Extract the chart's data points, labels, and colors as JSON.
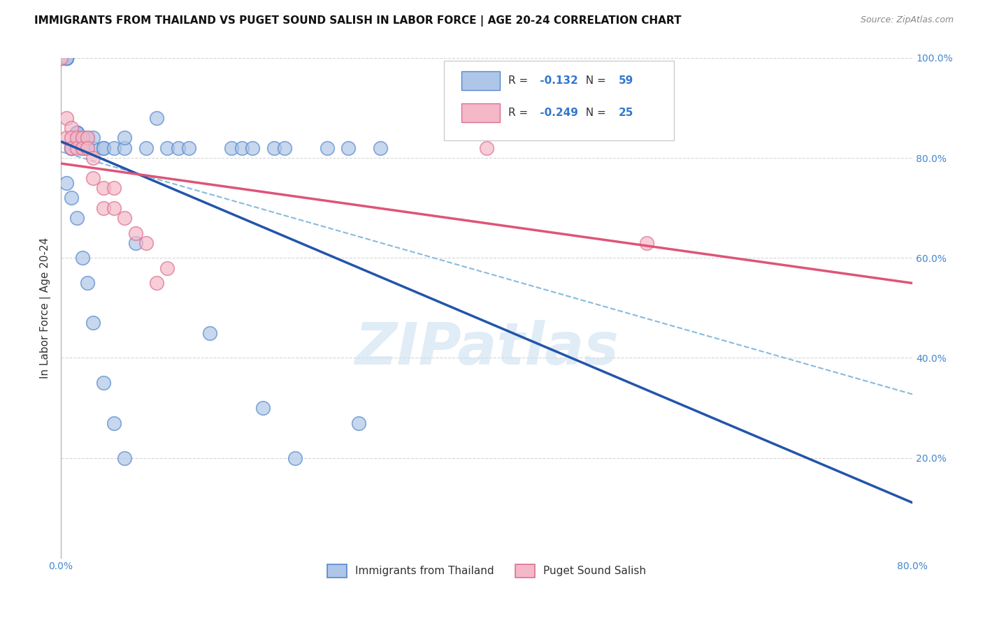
{
  "title": "IMMIGRANTS FROM THAILAND VS PUGET SOUND SALISH IN LABOR FORCE | AGE 20-24 CORRELATION CHART",
  "source": "Source: ZipAtlas.com",
  "ylabel": "In Labor Force | Age 20-24",
  "xlim": [
    0.0,
    0.8
  ],
  "ylim": [
    0.0,
    1.0
  ],
  "blue_R": -0.132,
  "blue_N": 59,
  "pink_R": -0.249,
  "pink_N": 25,
  "blue_scatter_color": "#aec6e8",
  "blue_edge_color": "#5588cc",
  "pink_scatter_color": "#f4b8c8",
  "pink_edge_color": "#dd7090",
  "blue_line_color": "#2255aa",
  "pink_line_color": "#dd5577",
  "dashed_line_color": "#88bbdd",
  "watermark_color": "#cce0f0",
  "tick_label_color": "#4488cc",
  "legend_blue_label": "Immigrants from Thailand",
  "legend_pink_label": "Puget Sound Salish",
  "blue_scatter_x": [
    0.0,
    0.0,
    0.0,
    0.0,
    0.0,
    0.005,
    0.005,
    0.005,
    0.005,
    0.005,
    0.005,
    0.01,
    0.01,
    0.01,
    0.01,
    0.01,
    0.015,
    0.015,
    0.015,
    0.015,
    0.02,
    0.02,
    0.02,
    0.025,
    0.025,
    0.03,
    0.03,
    0.04,
    0.04,
    0.05,
    0.06,
    0.06,
    0.07,
    0.08,
    0.09,
    0.1,
    0.11,
    0.12,
    0.14,
    0.16,
    0.17,
    0.18,
    0.19,
    0.2,
    0.21,
    0.22,
    0.25,
    0.27,
    0.28,
    0.3,
    0.005,
    0.01,
    0.015,
    0.02,
    0.025,
    0.03,
    0.04,
    0.05,
    0.06
  ],
  "blue_scatter_y": [
    1.0,
    1.0,
    1.0,
    1.0,
    1.0,
    1.0,
    1.0,
    1.0,
    1.0,
    1.0,
    1.0,
    0.82,
    0.82,
    0.82,
    0.82,
    0.82,
    0.85,
    0.85,
    0.85,
    0.85,
    0.82,
    0.82,
    0.84,
    0.82,
    0.84,
    0.82,
    0.84,
    0.82,
    0.82,
    0.82,
    0.82,
    0.84,
    0.63,
    0.82,
    0.88,
    0.82,
    0.82,
    0.82,
    0.45,
    0.82,
    0.82,
    0.82,
    0.3,
    0.82,
    0.82,
    0.2,
    0.82,
    0.82,
    0.27,
    0.82,
    0.75,
    0.72,
    0.68,
    0.6,
    0.55,
    0.47,
    0.35,
    0.27,
    0.2
  ],
  "pink_scatter_x": [
    0.0,
    0.005,
    0.005,
    0.01,
    0.01,
    0.01,
    0.015,
    0.015,
    0.02,
    0.02,
    0.025,
    0.025,
    0.03,
    0.03,
    0.04,
    0.04,
    0.05,
    0.05,
    0.06,
    0.07,
    0.08,
    0.09,
    0.1,
    0.4,
    0.55
  ],
  "pink_scatter_y": [
    1.0,
    0.88,
    0.84,
    0.86,
    0.84,
    0.82,
    0.84,
    0.82,
    0.84,
    0.82,
    0.84,
    0.82,
    0.76,
    0.8,
    0.7,
    0.74,
    0.7,
    0.74,
    0.68,
    0.65,
    0.63,
    0.55,
    0.58,
    0.82,
    0.63
  ],
  "title_fontsize": 11,
  "source_fontsize": 9,
  "tick_fontsize": 10,
  "label_fontsize": 11,
  "watermark": "ZIPatlas"
}
